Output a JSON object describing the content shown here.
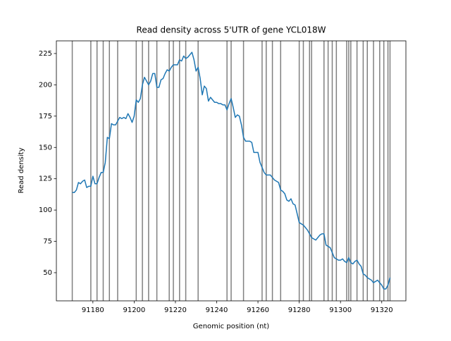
{
  "chart_data": {
    "type": "line",
    "title": "Read density across 5'UTR of gene YCL018W",
    "x_label": "Genomic position (nt)",
    "y_label": "Read density",
    "x": [
      91170,
      91171,
      91172,
      91173,
      91174,
      91175,
      91176,
      91177,
      91178,
      91179,
      91180,
      91181,
      91182,
      91183,
      91184,
      91185,
      91186,
      91187,
      91188,
      91189,
      91190,
      91191,
      91192,
      91193,
      91194,
      91195,
      91196,
      91197,
      91198,
      91199,
      91200,
      91201,
      91202,
      91203,
      91204,
      91205,
      91206,
      91207,
      91208,
      91209,
      91210,
      91211,
      91212,
      91213,
      91214,
      91215,
      91216,
      91217,
      91218,
      91219,
      91220,
      91221,
      91222,
      91223,
      91224,
      91225,
      91226,
      91227,
      91228,
      91229,
      91230,
      91231,
      91232,
      91233,
      91234,
      91235,
      91236,
      91237,
      91238,
      91239,
      91240,
      91241,
      91242,
      91243,
      91244,
      91245,
      91246,
      91247,
      91248,
      91249,
      91250,
      91251,
      91252,
      91253,
      91254,
      91255,
      91256,
      91257,
      91258,
      91259,
      91260,
      91261,
      91262,
      91263,
      91264,
      91265,
      91266,
      91267,
      91268,
      91269,
      91270,
      91271,
      91272,
      91273,
      91274,
      91275,
      91276,
      91277,
      91278,
      91279,
      91280,
      91281,
      91282,
      91283,
      91284,
      91285,
      91286,
      91287,
      91288,
      91289,
      91290,
      91291,
      91292,
      91293,
      91294,
      91295,
      91296,
      91297,
      91298,
      91299,
      91300,
      91301,
      91302,
      91303,
      91304,
      91305,
      91306,
      91307,
      91308,
      91309,
      91310,
      91311,
      91312,
      91313,
      91314,
      91315,
      91316,
      91317,
      91318,
      91319,
      91320,
      91321,
      91322,
      91323,
      91324
    ],
    "values": [
      114,
      114,
      116,
      122,
      121,
      123,
      124,
      118,
      119,
      119,
      127,
      121,
      121,
      126,
      130,
      130,
      138,
      158,
      157,
      169,
      168,
      168,
      171,
      174,
      173,
      174,
      173,
      177,
      174,
      170,
      175,
      188,
      186,
      189,
      200,
      206,
      203,
      200,
      203,
      209,
      209,
      198,
      198,
      204,
      205,
      209,
      212,
      211,
      214,
      216,
      216,
      216,
      220,
      219,
      223,
      221,
      222,
      224,
      226,
      220,
      211,
      214,
      205,
      192,
      199,
      197,
      187,
      190,
      188,
      186,
      186,
      185,
      185,
      184,
      184,
      180,
      185,
      189,
      182,
      174,
      176,
      175,
      168,
      158,
      155,
      155,
      155,
      154,
      146,
      146,
      146,
      138,
      134,
      130,
      128,
      128,
      128,
      126,
      124,
      123,
      122,
      116,
      115,
      113,
      108,
      107,
      109,
      105,
      104,
      97,
      90,
      89,
      88,
      86,
      84,
      81,
      78,
      77,
      76,
      78,
      80,
      81,
      81,
      72,
      71,
      70,
      66,
      62,
      61,
      60,
      60,
      61,
      59,
      58,
      62,
      58,
      57,
      59,
      60,
      57,
      55,
      49,
      48,
      46,
      45,
      44,
      42,
      43,
      44,
      42,
      40,
      37,
      37,
      40,
      46
    ],
    "color": "#1f77b4",
    "vlines": {
      "x": [
        91170,
        91179,
        91182,
        91185,
        91188,
        91192,
        91201,
        91204,
        91207,
        91211,
        91217,
        91219,
        91222,
        91225,
        91231,
        91245,
        91247,
        91253,
        91262,
        91264,
        91267,
        91271,
        91280,
        91282,
        91285,
        91286,
        91292,
        91294,
        91296,
        91298,
        91303,
        91304,
        91305,
        91308,
        91311,
        91313,
        91316,
        91319,
        91321,
        91323,
        91324
      ],
      "color": "#808080"
    },
    "xlim": [
      91162.3,
      91331.7
    ],
    "ylim": [
      27.5,
      235.1
    ],
    "xticks": [
      91180,
      91200,
      91220,
      91240,
      91260,
      91280,
      91300,
      91320
    ],
    "yticks": [
      50,
      75,
      100,
      125,
      150,
      175,
      200,
      225
    ],
    "grid": false
  }
}
